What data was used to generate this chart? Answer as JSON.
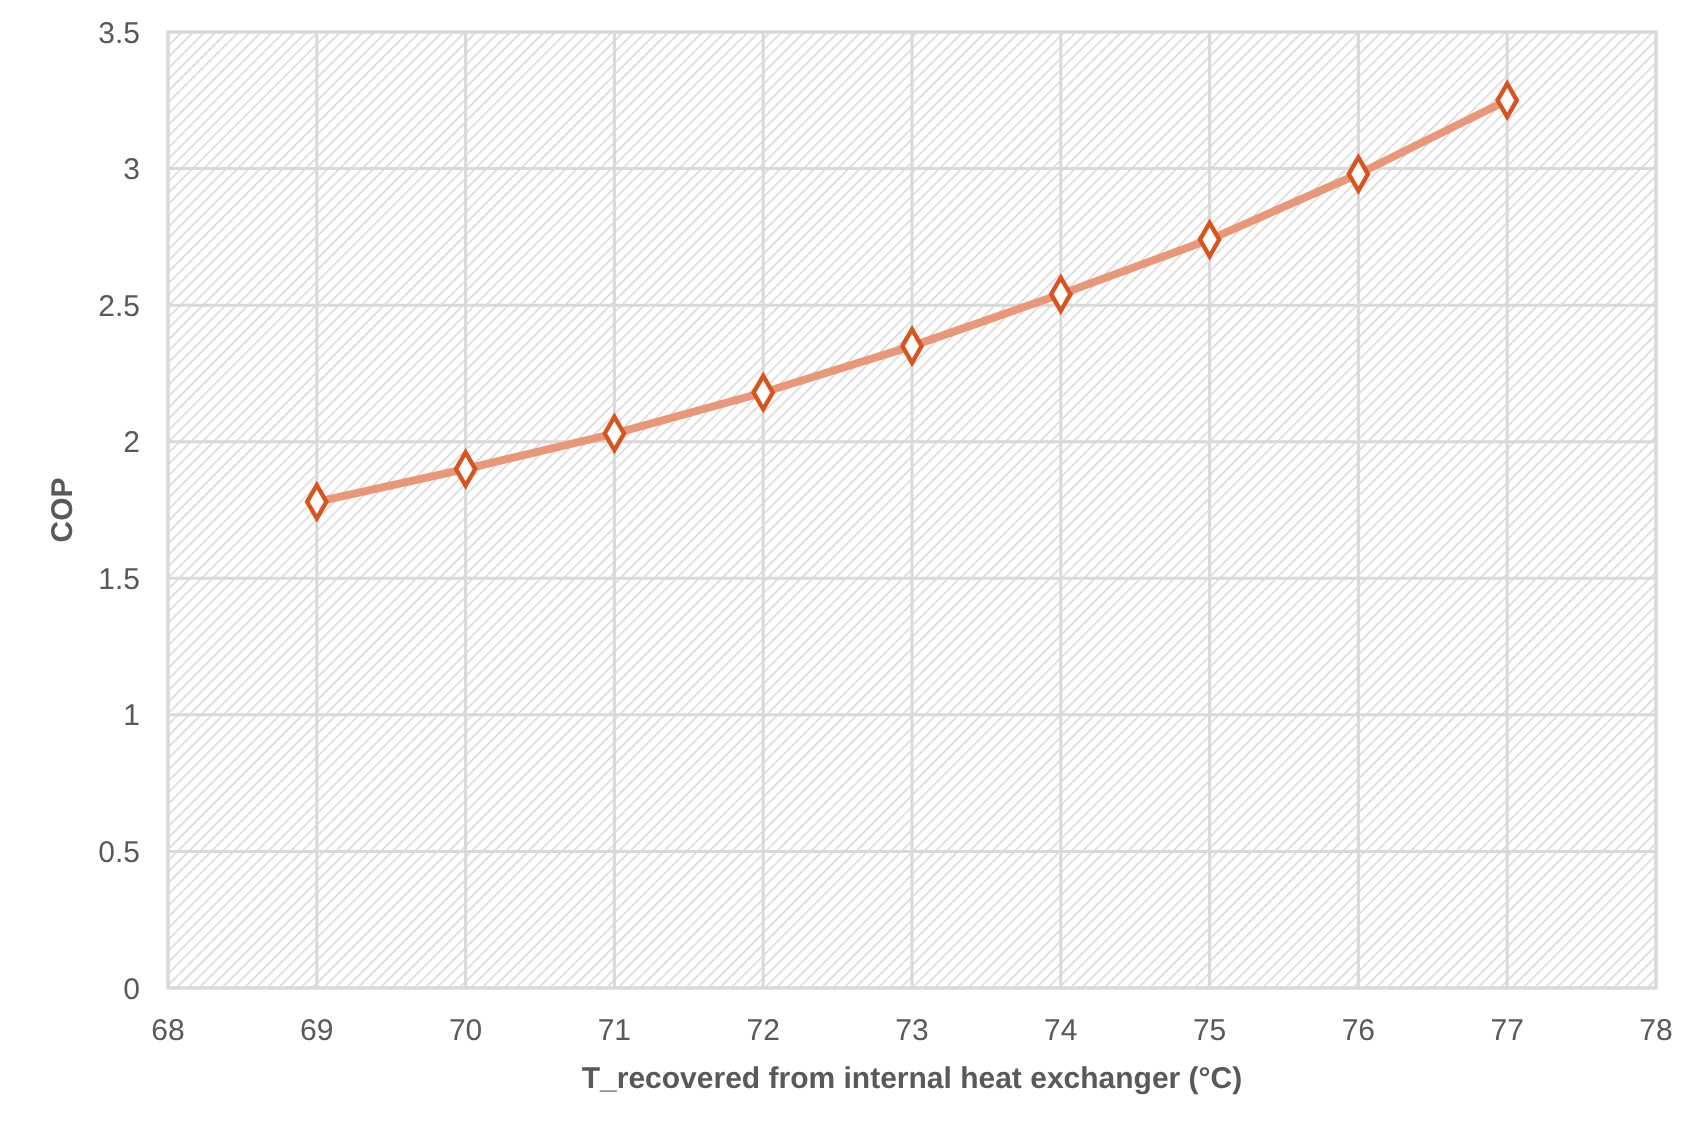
{
  "chart_data": {
    "type": "line",
    "xlabel": "T_recovered from internal heat exchanger (°C)",
    "ylabel": "COP",
    "x": [
      69,
      70,
      71,
      72,
      73,
      74,
      75,
      76,
      77
    ],
    "series": [
      {
        "color": "#d9531e",
        "values": [
          1.78,
          1.9,
          2.03,
          2.18,
          2.35,
          2.54,
          2.74,
          2.98,
          3.25
        ]
      }
    ],
    "xlim": [
      68,
      78
    ],
    "xticks": [
      68,
      69,
      70,
      71,
      72,
      73,
      74,
      75,
      76,
      77,
      78
    ],
    "ylim": [
      0,
      3.5
    ],
    "yticks": [
      0,
      {
        "value": 0.5,
        "label": "0.5"
      },
      1,
      {
        "value": 1.5,
        "label": "1.5"
      },
      2,
      {
        "value": 2.5,
        "label": "2.5"
      },
      3,
      {
        "value": 3.5,
        "label": "3.5"
      }
    ],
    "grid": true,
    "marker": "diamond",
    "line_style": "solid"
  }
}
